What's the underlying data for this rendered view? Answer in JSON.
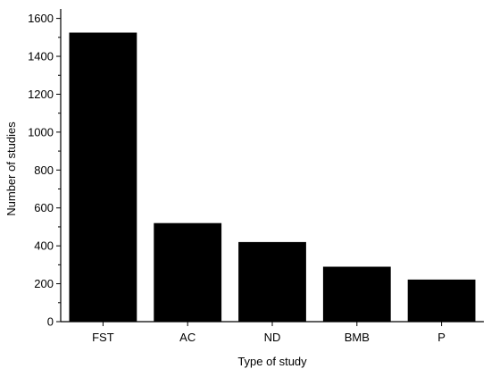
{
  "chart_data": {
    "type": "bar",
    "title": "",
    "xlabel": "Type of study",
    "ylabel": "Number of studies",
    "categories": [
      "FST",
      "AC",
      "ND",
      "BMB",
      "P"
    ],
    "values": [
      1525,
      520,
      420,
      290,
      222
    ],
    "ylim": [
      0,
      1650
    ],
    "yticks": [
      0,
      200,
      400,
      600,
      800,
      1000,
      1200,
      1400,
      1600
    ],
    "grid": false,
    "legend": "none",
    "colors": {
      "bar": "#000000",
      "axis": "#000000",
      "background": "#ffffff"
    }
  }
}
